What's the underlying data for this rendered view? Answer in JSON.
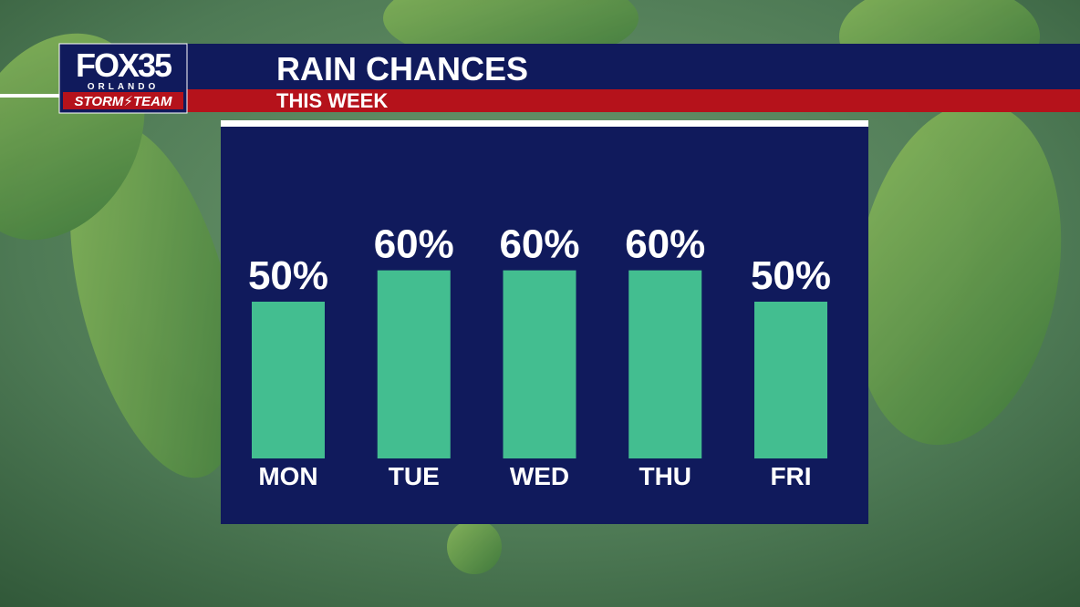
{
  "logo": {
    "brand": "FOX35",
    "city": "ORLANDO",
    "team": "STORM⚡TEAM"
  },
  "chart_data": {
    "type": "bar",
    "title": "RAIN CHANCES",
    "subtitle": "THIS WEEK",
    "categories": [
      "MON",
      "TUE",
      "WED",
      "THU",
      "FRI"
    ],
    "values": [
      50,
      60,
      60,
      60,
      50
    ],
    "value_labels": [
      "50%",
      "60%",
      "60%",
      "60%",
      "50%"
    ],
    "color": "#43be90"
  }
}
